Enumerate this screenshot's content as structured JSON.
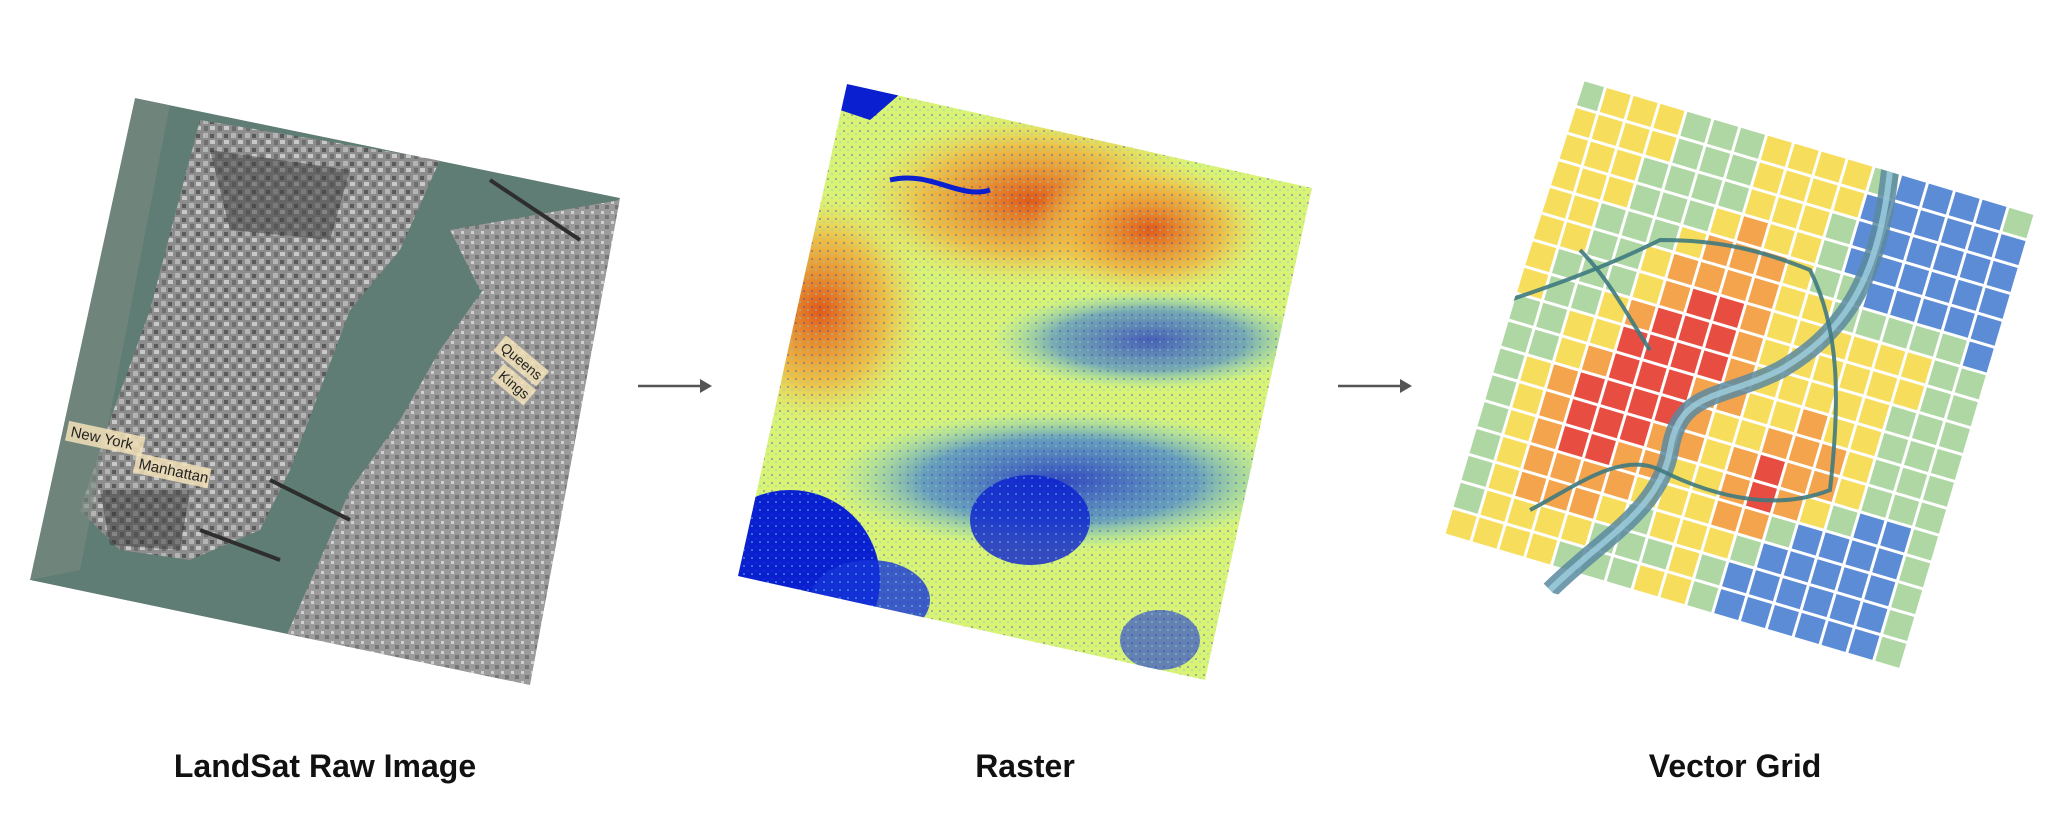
{
  "diagram": {
    "stages": [
      {
        "id": "landsat",
        "caption": "LandSat Raw Image",
        "map_labels": [
          "New York",
          "Manhattan",
          "Queens",
          "Kings"
        ]
      },
      {
        "id": "raster",
        "caption": "Raster"
      },
      {
        "id": "vector",
        "caption": "Vector Grid"
      }
    ],
    "arrows": [
      "arrow-1",
      "arrow-2"
    ],
    "colors": {
      "water": "#5f7d74",
      "land": "#8a8a8a",
      "raster_low": "#0a1fd0",
      "raster_mid": "#e8f56a",
      "raster_high": "#e8621d",
      "grid_hot": "#e53a2e",
      "grid_warm": "#f29a3a",
      "grid_mild": "#f6d94a",
      "grid_cool": "#a6d39a",
      "grid_cold": "#4a7fd0",
      "river": "#5a8aa0",
      "arrow": "#555555",
      "label_bg": "#f3e2b8"
    }
  }
}
